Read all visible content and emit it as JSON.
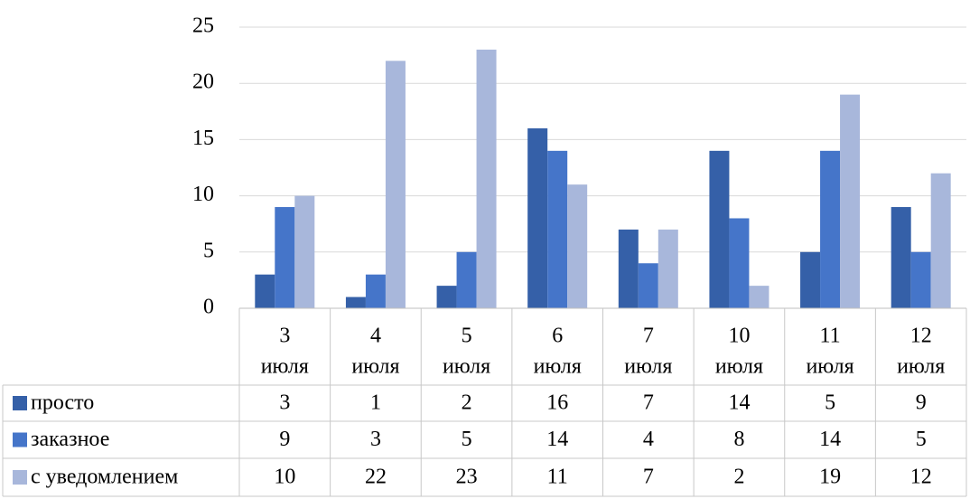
{
  "chart_data": {
    "type": "bar",
    "categories": [
      [
        "3",
        "июля"
      ],
      [
        "4",
        "июля"
      ],
      [
        "5",
        "июля"
      ],
      [
        "6",
        "июля"
      ],
      [
        "7",
        "июля"
      ],
      [
        "10",
        "июля"
      ],
      [
        "11",
        "июля"
      ],
      [
        "12",
        "июля"
      ]
    ],
    "series": [
      {
        "name": "просто",
        "color": "#3560a8",
        "values": [
          3,
          1,
          2,
          16,
          7,
          14,
          5,
          9
        ]
      },
      {
        "name": "заказное",
        "color": "#4575c9",
        "values": [
          9,
          3,
          5,
          14,
          4,
          8,
          14,
          5
        ]
      },
      {
        "name": "с уведомлением",
        "color": "#a8b7db",
        "values": [
          10,
          22,
          23,
          11,
          7,
          2,
          19,
          12
        ]
      }
    ],
    "yticks": [
      "0",
      "5",
      "10",
      "15",
      "20",
      "25"
    ],
    "ylim": [
      0,
      25
    ],
    "grid": true,
    "legend": "data-table"
  }
}
